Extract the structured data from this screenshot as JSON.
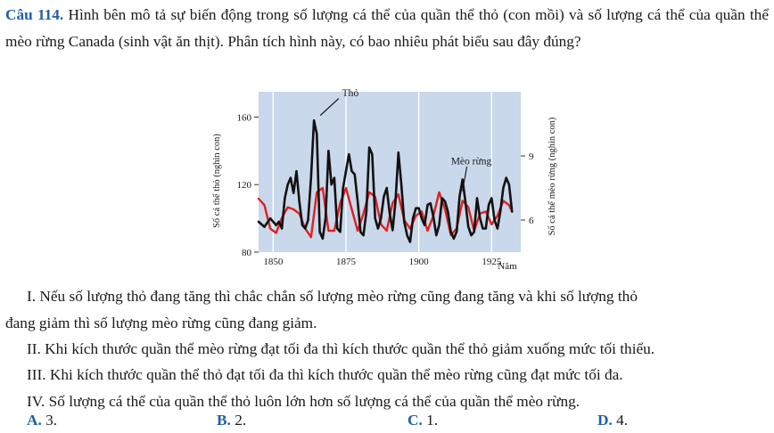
{
  "question": {
    "number": "Câu 114.",
    "text": "Hình bên mô tả sự biến động trong số lượng cá thể của quần thể thỏ (con mồi) và số lượng cá thể của quần thể mèo rừng Canada (sinh vật ăn thịt). Phân tích hình này, có bao nhiêu phát biểu sau đây đúng?"
  },
  "chart_data": {
    "type": "line",
    "xlabel": "Năm",
    "ylabel_left": "Số cá thể thỏ (nghìn con)",
    "ylabel_right": "Số cá thể mèo rừng (nghìn con)",
    "x_ticks": [
      "1850",
      "1875",
      "1900",
      "1925"
    ],
    "y_left_ticks": [
      "80",
      "120",
      "160"
    ],
    "y_right_ticks": [
      "6",
      "9"
    ],
    "xlim": [
      1845,
      1935
    ],
    "ylim_left": [
      80,
      175
    ],
    "ylim_right": [
      4.5,
      12.0
    ],
    "grid": true,
    "series": [
      {
        "name": "Thỏ",
        "axis": "left",
        "color": "#111111",
        "x": [
          1845,
          1847,
          1849,
          1851,
          1852,
          1853,
          1854,
          1855,
          1856,
          1857,
          1858,
          1859,
          1860,
          1861,
          1862,
          1863,
          1864,
          1865,
          1866,
          1867,
          1868,
          1869,
          1870,
          1871,
          1872,
          1873,
          1874,
          1875,
          1876,
          1877,
          1878,
          1879,
          1880,
          1881,
          1882,
          1883,
          1884,
          1885,
          1886,
          1887,
          1888,
          1889,
          1890,
          1891,
          1892,
          1893,
          1894,
          1895,
          1896,
          1897,
          1898,
          1899,
          1900,
          1901,
          1902,
          1903,
          1904,
          1905,
          1906,
          1907,
          1908,
          1909,
          1910,
          1911,
          1912,
          1913,
          1914,
          1915,
          1916,
          1917,
          1918,
          1919,
          1920,
          1921,
          1922,
          1923,
          1924,
          1925,
          1926,
          1927,
          1928,
          1929,
          1930,
          1931,
          1932
        ],
        "values": [
          98,
          95,
          100,
          96,
          98,
          94,
          112,
          120,
          124,
          115,
          128,
          110,
          96,
          94,
          99,
          124,
          158,
          150,
          92,
          88,
          100,
          140,
          120,
          124,
          94,
          92,
          118,
          128,
          138,
          128,
          126,
          110,
          92,
          90,
          104,
          142,
          138,
          100,
          94,
          100,
          113,
          118,
          103,
          93,
          110,
          139,
          120,
          98,
          90,
          86,
          100,
          106,
          106,
          100,
          96,
          108,
          109,
          101,
          90,
          96,
          112,
          110,
          104,
          92,
          88,
          92,
          113,
          123,
          110,
          95,
          90,
          92,
          112,
          100,
          94,
          94,
          108,
          112,
          99,
          94,
          104,
          118,
          124,
          120,
          104
        ]
      },
      {
        "name": "Mèo rừng",
        "axis": "right",
        "color": "#e02020",
        "x": [
          1845,
          1847,
          1849,
          1851,
          1853,
          1855,
          1857,
          1859,
          1861,
          1863,
          1865,
          1867,
          1869,
          1871,
          1873,
          1875,
          1877,
          1879,
          1881,
          1883,
          1885,
          1887,
          1889,
          1891,
          1893,
          1895,
          1897,
          1899,
          1901,
          1903,
          1905,
          1907,
          1909,
          1911,
          1913,
          1915,
          1917,
          1919,
          1921,
          1923,
          1925,
          1927,
          1929,
          1931,
          1932
        ],
        "values": [
          7.0,
          6.7,
          5.6,
          5.4,
          6.1,
          6.6,
          6.5,
          6.3,
          5.6,
          5.2,
          7.3,
          7.5,
          5.5,
          5.5,
          6.8,
          7.5,
          6.5,
          5.5,
          6.3,
          7.3,
          7.1,
          5.8,
          5.5,
          6.8,
          7.2,
          6.0,
          5.6,
          6.2,
          6.4,
          5.5,
          6.2,
          7.3,
          6.5,
          5.3,
          5.6,
          6.9,
          6.6,
          5.5,
          6.3,
          6.4,
          5.8,
          6.2,
          6.9,
          6.7,
          6.4
        ]
      }
    ],
    "annotations": [
      {
        "text": "Thỏ",
        "series": "Thỏ"
      },
      {
        "text": "Mèo rừng",
        "series": "Mèo rừng"
      }
    ]
  },
  "statements": [
    {
      "line1": "I. Nếu số lượng thỏ đang tăng thì chắc chắn số lượng mèo rừng cũng đang tăng và khi số lượng thỏ",
      "line2": "đang giảm thì số lượng mèo rừng cũng đang giảm."
    },
    {
      "line1": "II. Khi kích thước quần thể mèo rừng đạt tối đa thì kích thước quần thể thỏ giảm xuống mức tối thiểu."
    },
    {
      "line1": "III. Khi kích thước quần thể thỏ đạt tối đa thì kích thước quần thể mèo rừng cũng đạt mức tối đa."
    },
    {
      "line1": "IV. Số lượng cá thể của quần thể thỏ luôn lớn hơn số lượng cá thể của quần thể mèo rừng."
    }
  ],
  "options": [
    {
      "letter": "A.",
      "value": "3."
    },
    {
      "letter": "B.",
      "value": "2."
    },
    {
      "letter": "C.",
      "value": "1."
    },
    {
      "letter": "D.",
      "value": "4."
    }
  ],
  "colors": {
    "plot_background": "#c9d8ea",
    "grid": "#ffffff",
    "accent": "#1f5fa8"
  }
}
